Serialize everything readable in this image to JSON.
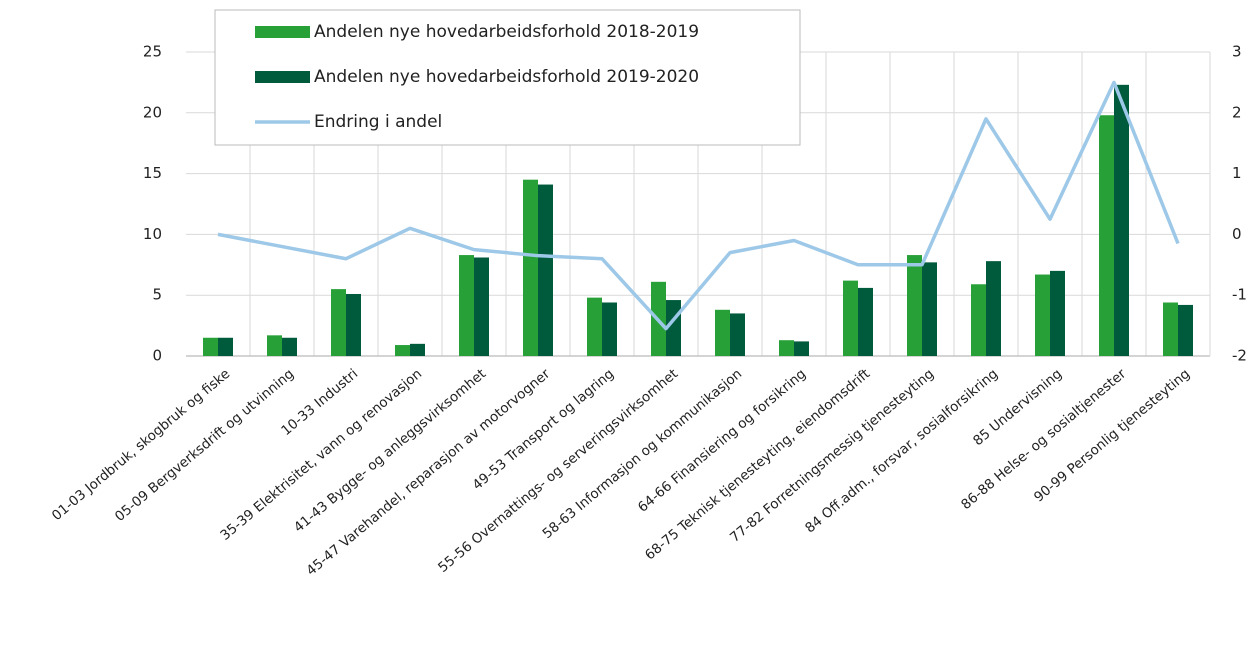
{
  "chart_data": {
    "type": "bar-line",
    "categories": [
      "01-03 Jordbruk, skogbruk og fiske",
      "05-09 Bergverksdrift og utvinning",
      "10-33 Industri",
      "35-39 Elektrisitet, vann og renovasjon",
      "41-43 Bygge- og anleggsvirksomhet",
      "45-47 Varehandel, reparasjon av motorvogner",
      "49-53 Transport og lagring",
      "55-56 Overnattings- og serveringsvirksomhet",
      "58-63 Informasjon og kommunikasjon",
      "64-66 Finansiering og forsikring",
      "68-75 Teknisk tjenesteyting, eiendomsdrift",
      "77-82 Forretningsmessig tjenesteyting",
      "84 Off.adm., forsvar, sosialforsikring",
      "85 Undervisning",
      "86-88 Helse- og sosialtjenester",
      "90-99 Personlig tjenesteyting"
    ],
    "series": [
      {
        "name": "Andelen nye hovedarbeidsforhold 2018-2019",
        "type": "bar",
        "color": "#27a037",
        "values": [
          1.5,
          1.7,
          5.5,
          0.9,
          8.3,
          14.5,
          4.8,
          6.1,
          3.8,
          1.3,
          6.2,
          8.3,
          5.9,
          6.7,
          19.8,
          4.4
        ]
      },
      {
        "name": "Andelen nye hovedarbeidsforhold 2019-2020",
        "type": "bar",
        "color": "#005a3c",
        "values": [
          1.5,
          1.5,
          5.1,
          1.0,
          8.1,
          14.1,
          4.4,
          4.6,
          3.5,
          1.2,
          5.6,
          7.7,
          7.8,
          7.0,
          22.3,
          4.2
        ]
      },
      {
        "name": "Endring i andel",
        "type": "line",
        "axis": "y2",
        "color": "#9dc8e8",
        "values": [
          0.0,
          -0.2,
          -0.4,
          0.1,
          -0.25,
          -0.35,
          -0.4,
          -1.55,
          -0.3,
          -0.1,
          -0.5,
          -0.5,
          1.9,
          0.25,
          2.5,
          -0.15
        ]
      }
    ],
    "ylim": [
      0,
      25
    ],
    "yticks": [
      0,
      5,
      10,
      15,
      20,
      25
    ],
    "y2lim": [
      -2,
      3
    ],
    "y2ticks": [
      -2,
      -1,
      0,
      1,
      2,
      3
    ],
    "grid": true,
    "legend": "top-left"
  }
}
